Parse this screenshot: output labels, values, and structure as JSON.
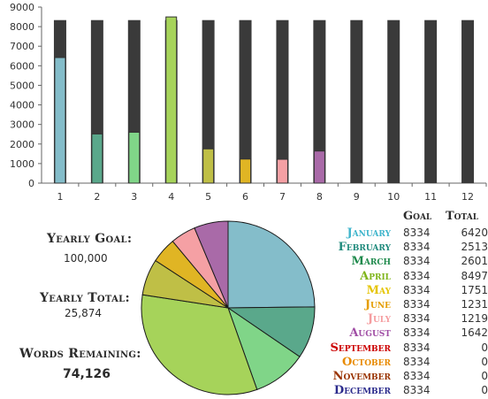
{
  "chart_data": [
    {
      "type": "bar",
      "categories": [
        "1",
        "2",
        "3",
        "4",
        "5",
        "6",
        "7",
        "8",
        "9",
        "10",
        "11",
        "12"
      ],
      "series": [
        {
          "values": [
            8334,
            8334,
            8334,
            8334,
            8334,
            8334,
            8334,
            8334,
            8334,
            8334,
            8334,
            8334
          ],
          "color": "#3a3a3a"
        },
        {
          "values": [
            6420,
            2513,
            2601,
            8497,
            1751,
            1231,
            1219,
            1642,
            0,
            0,
            0,
            0
          ]
        }
      ],
      "ylim": [
        0,
        9000
      ],
      "yticks": [
        "0",
        "1000",
        "2000",
        "3000",
        "4000",
        "5000",
        "6000",
        "7000",
        "8000",
        "9000"
      ],
      "grid": false
    },
    {
      "type": "pie",
      "labels": [
        "January",
        "February",
        "March",
        "April",
        "May",
        "June",
        "July",
        "August",
        "September",
        "October",
        "November",
        "December"
      ],
      "values": [
        6420,
        2513,
        2601,
        8497,
        1751,
        1231,
        1219,
        1642,
        0,
        0,
        0,
        0
      ]
    }
  ],
  "colors": {
    "goal_bar": "#3a3a3a",
    "months": [
      "#84bdca",
      "#5aa88b",
      "#80d588",
      "#a6d35a",
      "#bfbf46",
      "#e0b524",
      "#f5a0a4",
      "#a96aa8",
      "#cc0000",
      "#ee8800",
      "#993300",
      "#333399"
    ],
    "label_colors": [
      "#40b5cc",
      "#1f8a7c",
      "#1f8a4c",
      "#7fb51a",
      "#e5c400",
      "#e59d00",
      "#f59da0",
      "#a04ea5",
      "#cc0000",
      "#e88a00",
      "#993300",
      "#2b2b8c"
    ]
  },
  "summary": {
    "goal_label": "Yearly Goal:",
    "goal_value": "100,000",
    "total_label": "Yearly Total:",
    "total_value": "25,874",
    "remaining_label": "Words Remaining:",
    "remaining_value": "74,126"
  },
  "table": {
    "col_goal": "Goal",
    "col_total": "Total",
    "rows": [
      {
        "month": "January",
        "goal": "8334",
        "total": "6420"
      },
      {
        "month": "February",
        "goal": "8334",
        "total": "2513"
      },
      {
        "month": "March",
        "goal": "8334",
        "total": "2601"
      },
      {
        "month": "April",
        "goal": "8334",
        "total": "8497"
      },
      {
        "month": "May",
        "goal": "8334",
        "total": "1751"
      },
      {
        "month": "June",
        "goal": "8334",
        "total": "1231"
      },
      {
        "month": "July",
        "goal": "8334",
        "total": "1219"
      },
      {
        "month": "August",
        "goal": "8334",
        "total": "1642"
      },
      {
        "month": "September",
        "goal": "8334",
        "total": "0"
      },
      {
        "month": "October",
        "goal": "8334",
        "total": "0"
      },
      {
        "month": "November",
        "goal": "8334",
        "total": "0"
      },
      {
        "month": "December",
        "goal": "8334",
        "total": "0"
      }
    ]
  }
}
